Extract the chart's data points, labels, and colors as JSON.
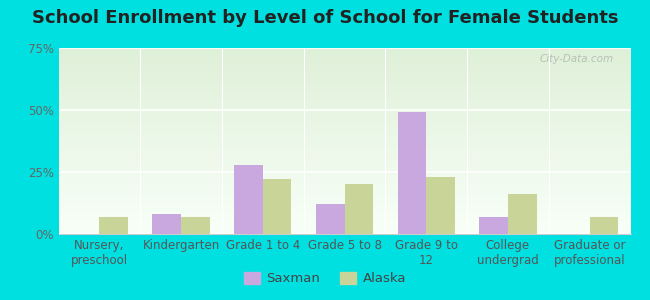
{
  "title": "School Enrollment by Level of School for Female Students",
  "categories": [
    "Nursery,\npreschool",
    "Kindergarten",
    "Grade 1 to 4",
    "Grade 5 to 8",
    "Grade 9 to\n12",
    "College\nundergrad",
    "Graduate or\nprofessional"
  ],
  "saxman": [
    0,
    8,
    28,
    12,
    49,
    7,
    0
  ],
  "alaska": [
    7,
    7,
    22,
    20,
    23,
    16,
    7
  ],
  "saxman_color": "#c9a8e0",
  "alaska_color": "#c8d498",
  "ylim": [
    0,
    75
  ],
  "yticks": [
    0,
    25,
    50,
    75
  ],
  "ytick_labels": [
    "0%",
    "25%",
    "50%",
    "75%"
  ],
  "background_color": "#00e0e0",
  "plot_bg_color": "#eaf5e4",
  "title_fontsize": 13,
  "axis_fontsize": 8.5,
  "legend_fontsize": 9.5,
  "bar_width": 0.35,
  "legend_saxman": "Saxman",
  "legend_alaska": "Alaska",
  "watermark": "City-Data.com"
}
